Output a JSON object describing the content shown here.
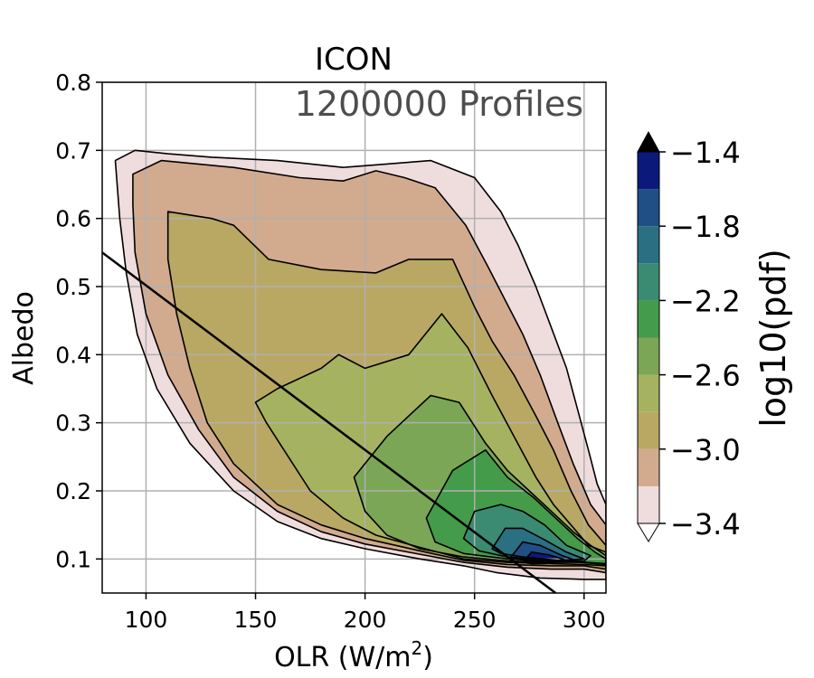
{
  "chart_data": {
    "type": "contour",
    "title": "ICON",
    "annotation": "1200000 Profiles",
    "xlabel": "OLR (W/m",
    "xlabel_sup": "2",
    "xlabel_end": ")",
    "ylabel": "Albedo",
    "xlim": [
      80,
      310
    ],
    "ylim": [
      0.05,
      0.8
    ],
    "x_ticks": [
      100,
      150,
      200,
      250,
      300
    ],
    "y_ticks": [
      0.1,
      0.2,
      0.3,
      0.4,
      0.5,
      0.6,
      0.7,
      0.8
    ],
    "x_tick_labels": [
      "100",
      "150",
      "200",
      "250",
      "300"
    ],
    "y_tick_labels": [
      "0.1",
      "0.2",
      "0.3",
      "0.4",
      "0.5",
      "0.6",
      "0.7",
      "0.8"
    ],
    "grid": true,
    "colorbar": {
      "label": "log10(pdf)",
      "levels": [
        -3.4,
        -3.2,
        -3.0,
        -2.8,
        -2.6,
        -2.4,
        -2.2,
        -2.0,
        -1.8,
        -1.6,
        -1.4
      ],
      "tick_values": [
        -1.4,
        -1.8,
        -2.2,
        -2.6,
        -3.0,
        -3.4
      ],
      "tick_labels": [
        "−1.4",
        "−1.8",
        "−2.2",
        "−2.6",
        "−3.0",
        "−3.4"
      ],
      "extend": "both",
      "colors": [
        "#efdcdc",
        "#d2aa8e",
        "#b9a863",
        "#a5b25f",
        "#7ba656",
        "#449b4a",
        "#3b8a72",
        "#2a6f82",
        "#1f4f84",
        "#0b1a7a"
      ]
    },
    "contours": [
      {
        "level": -3.4,
        "points": [
          [
            86,
            0.685
          ],
          [
            95,
            0.7
          ],
          [
            110,
            0.695
          ],
          [
            130,
            0.69
          ],
          [
            160,
            0.685
          ],
          [
            190,
            0.675
          ],
          [
            210,
            0.68
          ],
          [
            230,
            0.685
          ],
          [
            250,
            0.66
          ],
          [
            262,
            0.61
          ],
          [
            270,
            0.56
          ],
          [
            278,
            0.5
          ],
          [
            285,
            0.44
          ],
          [
            292,
            0.38
          ],
          [
            297,
            0.32
          ],
          [
            302,
            0.26
          ],
          [
            306,
            0.21
          ],
          [
            310,
            0.18
          ],
          [
            310,
            0.07
          ],
          [
            300,
            0.07
          ],
          [
            280,
            0.072
          ],
          [
            260,
            0.08
          ],
          [
            245,
            0.09
          ],
          [
            225,
            0.1
          ],
          [
            200,
            0.115
          ],
          [
            180,
            0.13
          ],
          [
            160,
            0.155
          ],
          [
            140,
            0.2
          ],
          [
            120,
            0.27
          ],
          [
            105,
            0.35
          ],
          [
            96,
            0.43
          ],
          [
            91,
            0.52
          ],
          [
            88,
            0.6
          ]
        ]
      },
      {
        "level": -3.2,
        "points": [
          [
            94,
            0.665
          ],
          [
            107,
            0.685
          ],
          [
            140,
            0.675
          ],
          [
            170,
            0.66
          ],
          [
            190,
            0.655
          ],
          [
            205,
            0.67
          ],
          [
            218,
            0.66
          ],
          [
            232,
            0.645
          ],
          [
            246,
            0.59
          ],
          [
            256,
            0.53
          ],
          [
            264,
            0.48
          ],
          [
            272,
            0.43
          ],
          [
            280,
            0.37
          ],
          [
            288,
            0.3
          ],
          [
            295,
            0.24
          ],
          [
            303,
            0.18
          ],
          [
            310,
            0.15
          ],
          [
            310,
            0.08
          ],
          [
            300,
            0.085
          ],
          [
            285,
            0.085
          ],
          [
            265,
            0.088
          ],
          [
            245,
            0.095
          ],
          [
            225,
            0.107
          ],
          [
            200,
            0.122
          ],
          [
            180,
            0.14
          ],
          [
            160,
            0.17
          ],
          [
            140,
            0.22
          ],
          [
            124,
            0.29
          ],
          [
            110,
            0.37
          ],
          [
            100,
            0.46
          ],
          [
            95,
            0.55
          ],
          [
            94,
            0.62
          ]
        ]
      },
      {
        "level": -3.0,
        "points": [
          [
            110,
            0.61
          ],
          [
            130,
            0.6
          ],
          [
            140,
            0.59
          ],
          [
            156,
            0.54
          ],
          [
            180,
            0.525
          ],
          [
            205,
            0.52
          ],
          [
            220,
            0.54
          ],
          [
            240,
            0.54
          ],
          [
            250,
            0.47
          ],
          [
            258,
            0.42
          ],
          [
            268,
            0.37
          ],
          [
            278,
            0.31
          ],
          [
            286,
            0.26
          ],
          [
            294,
            0.2
          ],
          [
            302,
            0.15
          ],
          [
            310,
            0.12
          ],
          [
            310,
            0.085
          ],
          [
            300,
            0.09
          ],
          [
            285,
            0.09
          ],
          [
            265,
            0.092
          ],
          [
            245,
            0.098
          ],
          [
            225,
            0.112
          ],
          [
            200,
            0.13
          ],
          [
            180,
            0.15
          ],
          [
            160,
            0.18
          ],
          [
            140,
            0.24
          ],
          [
            128,
            0.3
          ],
          [
            120,
            0.38
          ],
          [
            114,
            0.46
          ],
          [
            110,
            0.54
          ]
        ]
      },
      {
        "level": -2.8,
        "points": [
          [
            150,
            0.33
          ],
          [
            160,
            0.35
          ],
          [
            180,
            0.38
          ],
          [
            188,
            0.4
          ],
          [
            200,
            0.38
          ],
          [
            220,
            0.4
          ],
          [
            235,
            0.46
          ],
          [
            247,
            0.41
          ],
          [
            258,
            0.34
          ],
          [
            268,
            0.28
          ],
          [
            278,
            0.22
          ],
          [
            286,
            0.18
          ],
          [
            294,
            0.15
          ],
          [
            302,
            0.12
          ],
          [
            310,
            0.11
          ],
          [
            310,
            0.09
          ],
          [
            300,
            0.092
          ],
          [
            285,
            0.093
          ],
          [
            265,
            0.095
          ],
          [
            245,
            0.1
          ],
          [
            225,
            0.117
          ],
          [
            205,
            0.135
          ],
          [
            190,
            0.16
          ],
          [
            175,
            0.2
          ],
          [
            165,
            0.25
          ],
          [
            155,
            0.3
          ]
        ]
      },
      {
        "level": -2.6,
        "points": [
          [
            195,
            0.22
          ],
          [
            210,
            0.28
          ],
          [
            220,
            0.31
          ],
          [
            230,
            0.34
          ],
          [
            243,
            0.33
          ],
          [
            255,
            0.27
          ],
          [
            265,
            0.23
          ],
          [
            275,
            0.2
          ],
          [
            285,
            0.17
          ],
          [
            295,
            0.14
          ],
          [
            303,
            0.12
          ],
          [
            310,
            0.105
          ],
          [
            310,
            0.092
          ],
          [
            298,
            0.095
          ],
          [
            285,
            0.095
          ],
          [
            265,
            0.097
          ],
          [
            245,
            0.103
          ],
          [
            225,
            0.115
          ],
          [
            210,
            0.135
          ],
          [
            200,
            0.17
          ]
        ]
      },
      {
        "level": -2.4,
        "points": [
          [
            228,
            0.16
          ],
          [
            240,
            0.23
          ],
          [
            255,
            0.26
          ],
          [
            265,
            0.22
          ],
          [
            277,
            0.19
          ],
          [
            287,
            0.16
          ],
          [
            297,
            0.13
          ],
          [
            305,
            0.11
          ],
          [
            310,
            0.1
          ],
          [
            310,
            0.093
          ],
          [
            297,
            0.096
          ],
          [
            282,
            0.097
          ],
          [
            265,
            0.1
          ],
          [
            245,
            0.108
          ],
          [
            232,
            0.125
          ]
        ]
      },
      {
        "level": -2.2,
        "points": [
          [
            245,
            0.13
          ],
          [
            250,
            0.17
          ],
          [
            262,
            0.18
          ],
          [
            272,
            0.17
          ],
          [
            282,
            0.15
          ],
          [
            292,
            0.12
          ],
          [
            303,
            0.105
          ],
          [
            300,
            0.097
          ],
          [
            285,
            0.098
          ],
          [
            265,
            0.103
          ],
          [
            252,
            0.112
          ]
        ]
      },
      {
        "level": -2.0,
        "points": [
          [
            258,
            0.115
          ],
          [
            264,
            0.145
          ],
          [
            272,
            0.145
          ],
          [
            282,
            0.128
          ],
          [
            292,
            0.11
          ],
          [
            300,
            0.1
          ],
          [
            288,
            0.098
          ],
          [
            272,
            0.103
          ],
          [
            262,
            0.108
          ]
        ]
      },
      {
        "level": -1.8,
        "points": [
          [
            266,
            0.1
          ],
          [
            272,
            0.125
          ],
          [
            280,
            0.12
          ],
          [
            290,
            0.105
          ],
          [
            296,
            0.098
          ],
          [
            282,
            0.098
          ],
          [
            272,
            0.1
          ]
        ]
      },
      {
        "level": -1.6,
        "points": [
          [
            272,
            0.095
          ],
          [
            276,
            0.11
          ],
          [
            284,
            0.106
          ],
          [
            292,
            0.098
          ],
          [
            282,
            0.093
          ],
          [
            276,
            0.093
          ]
        ]
      }
    ],
    "regression_line": [
      [
        80,
        0.55
      ],
      [
        287,
        0.05
      ]
    ]
  }
}
